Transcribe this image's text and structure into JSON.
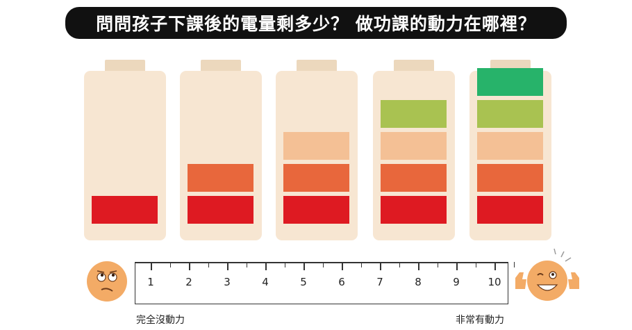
{
  "title": "問問孩子下課後的電量剩多少？ 做功課的動力在哪裡？",
  "batteries_levels": [
    1,
    2,
    3,
    4,
    5
  ],
  "cell_colors": [
    "#de1a22",
    "#e8673c",
    "#f4c095",
    "#a9c251",
    "#27b36a"
  ],
  "scale": {
    "numbers": [
      "1",
      "2",
      "3",
      "4",
      "5",
      "6",
      "7",
      "8",
      "9",
      "10"
    ],
    "left_label": "完全沒動力",
    "right_label": "非常有動力"
  },
  "icons": {
    "left_face": "confused-face-icon",
    "right_face": "happy-thumbs-up-face-icon"
  }
}
